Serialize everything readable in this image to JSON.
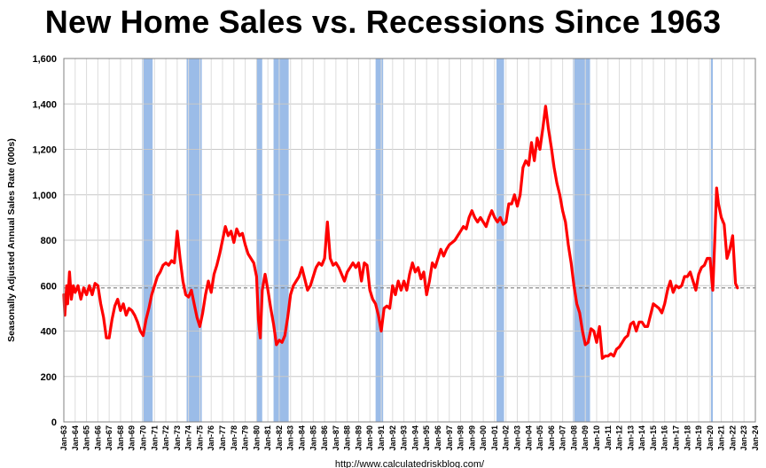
{
  "chart_data": {
    "type": "line",
    "title": "New Home Sales vs. Recessions Since 1963",
    "ylabel": "Seasonally Adjusted Annual Sales Rate (000s)",
    "xlabel": "",
    "source": "http://www.calculatedriskblog.com/",
    "ylim": [
      0,
      1600
    ],
    "xlim": [
      "1963-01",
      "2024-01"
    ],
    "y_ticks": [
      "0",
      "200",
      "400",
      "600",
      "800",
      "1,000",
      "1,200",
      "1,400",
      "1,600"
    ],
    "x_ticks": [
      "Jan-63",
      "Jan-64",
      "Jan-65",
      "Jan-66",
      "Jan-67",
      "Jan-68",
      "Jan-69",
      "Jan-70",
      "Jan-71",
      "Jan-72",
      "Jan-73",
      "Jan-74",
      "Jan-75",
      "Jan-76",
      "Jan-77",
      "Jan-78",
      "Jan-79",
      "Jan-80",
      "Jan-81",
      "Jan-82",
      "Jan-83",
      "Jan-84",
      "Jan-85",
      "Jan-86",
      "Jan-87",
      "Jan-88",
      "Jan-89",
      "Jan-90",
      "Jan-91",
      "Jan-92",
      "Jan-93",
      "Jan-94",
      "Jan-95",
      "Jan-96",
      "Jan-97",
      "Jan-98",
      "Jan-99",
      "Jan-00",
      "Jan-01",
      "Jan-02",
      "Jan-03",
      "Jan-04",
      "Jan-05",
      "Jan-06",
      "Jan-07",
      "Jan-08",
      "Jan-09",
      "Jan-10",
      "Jan-11",
      "Jan-12",
      "Jan-13",
      "Jan-14",
      "Jan-15",
      "Jan-16",
      "Jan-17",
      "Jan-18",
      "Jan-19",
      "Jan-20",
      "Jan-21",
      "Jan-22",
      "Jan-23",
      "Jan-24"
    ],
    "grid": true,
    "reference_line": {
      "y": 590,
      "style": "dashed"
    },
    "recessions": [
      {
        "start": "1969-12",
        "end": "1970-11"
      },
      {
        "start": "1973-11",
        "end": "1975-03"
      },
      {
        "start": "1980-01",
        "end": "1980-07"
      },
      {
        "start": "1981-07",
        "end": "1982-11"
      },
      {
        "start": "1990-07",
        "end": "1991-03"
      },
      {
        "start": "2001-03",
        "end": "2001-11"
      },
      {
        "start": "2007-12",
        "end": "2009-06"
      },
      {
        "start": "2020-02",
        "end": "2020-04"
      }
    ],
    "series": [
      {
        "color": "#ff0000",
        "points": [
          [
            "1963-01",
            560
          ],
          [
            "1963-02",
            470
          ],
          [
            "1963-04",
            600
          ],
          [
            "1963-05",
            520
          ],
          [
            "1963-07",
            660
          ],
          [
            "1963-09",
            540
          ],
          [
            "1963-11",
            600
          ],
          [
            "1964-01",
            570
          ],
          [
            "1964-04",
            600
          ],
          [
            "1964-07",
            540
          ],
          [
            "1964-10",
            590
          ],
          [
            "1965-01",
            560
          ],
          [
            "1965-04",
            600
          ],
          [
            "1965-07",
            560
          ],
          [
            "1965-10",
            610
          ],
          [
            "1966-01",
            600
          ],
          [
            "1966-04",
            520
          ],
          [
            "1966-07",
            460
          ],
          [
            "1966-10",
            370
          ],
          [
            "1967-01",
            370
          ],
          [
            "1967-04",
            450
          ],
          [
            "1967-07",
            510
          ],
          [
            "1967-10",
            540
          ],
          [
            "1968-01",
            490
          ],
          [
            "1968-04",
            520
          ],
          [
            "1968-07",
            470
          ],
          [
            "1968-10",
            500
          ],
          [
            "1969-01",
            490
          ],
          [
            "1969-04",
            470
          ],
          [
            "1969-07",
            440
          ],
          [
            "1969-10",
            400
          ],
          [
            "1970-01",
            380
          ],
          [
            "1970-04",
            450
          ],
          [
            "1970-07",
            500
          ],
          [
            "1970-10",
            560
          ],
          [
            "1971-01",
            600
          ],
          [
            "1971-04",
            640
          ],
          [
            "1971-07",
            660
          ],
          [
            "1971-10",
            690
          ],
          [
            "1972-01",
            700
          ],
          [
            "1972-04",
            690
          ],
          [
            "1972-07",
            710
          ],
          [
            "1972-10",
            700
          ],
          [
            "1973-01",
            840
          ],
          [
            "1973-04",
            720
          ],
          [
            "1973-07",
            620
          ],
          [
            "1973-10",
            560
          ],
          [
            "1974-01",
            550
          ],
          [
            "1974-04",
            580
          ],
          [
            "1974-07",
            520
          ],
          [
            "1974-10",
            460
          ],
          [
            "1975-01",
            420
          ],
          [
            "1975-04",
            480
          ],
          [
            "1975-07",
            560
          ],
          [
            "1975-10",
            620
          ],
          [
            "1976-01",
            570
          ],
          [
            "1976-04",
            650
          ],
          [
            "1976-07",
            690
          ],
          [
            "1976-10",
            740
          ],
          [
            "1977-01",
            800
          ],
          [
            "1977-04",
            860
          ],
          [
            "1977-07",
            820
          ],
          [
            "1977-10",
            840
          ],
          [
            "1978-01",
            790
          ],
          [
            "1978-04",
            850
          ],
          [
            "1978-07",
            820
          ],
          [
            "1978-10",
            830
          ],
          [
            "1979-01",
            780
          ],
          [
            "1979-04",
            740
          ],
          [
            "1979-07",
            720
          ],
          [
            "1979-10",
            700
          ],
          [
            "1980-01",
            640
          ],
          [
            "1980-03",
            450
          ],
          [
            "1980-05",
            370
          ],
          [
            "1980-07",
            580
          ],
          [
            "1980-10",
            650
          ],
          [
            "1981-01",
            580
          ],
          [
            "1981-04",
            500
          ],
          [
            "1981-07",
            430
          ],
          [
            "1981-10",
            340
          ],
          [
            "1982-01",
            360
          ],
          [
            "1982-04",
            350
          ],
          [
            "1982-07",
            380
          ],
          [
            "1982-10",
            460
          ],
          [
            "1983-01",
            560
          ],
          [
            "1983-04",
            600
          ],
          [
            "1983-07",
            620
          ],
          [
            "1983-10",
            640
          ],
          [
            "1984-01",
            680
          ],
          [
            "1984-04",
            630
          ],
          [
            "1984-07",
            580
          ],
          [
            "1984-10",
            600
          ],
          [
            "1985-01",
            640
          ],
          [
            "1985-04",
            680
          ],
          [
            "1985-07",
            700
          ],
          [
            "1985-10",
            690
          ],
          [
            "1986-01",
            720
          ],
          [
            "1986-04",
            880
          ],
          [
            "1986-07",
            720
          ],
          [
            "1986-10",
            690
          ],
          [
            "1987-01",
            700
          ],
          [
            "1987-04",
            680
          ],
          [
            "1987-07",
            650
          ],
          [
            "1987-10",
            620
          ],
          [
            "1988-01",
            660
          ],
          [
            "1988-04",
            680
          ],
          [
            "1988-07",
            700
          ],
          [
            "1988-10",
            680
          ],
          [
            "1989-01",
            700
          ],
          [
            "1989-04",
            620
          ],
          [
            "1989-07",
            700
          ],
          [
            "1989-10",
            690
          ],
          [
            "1990-01",
            580
          ],
          [
            "1990-04",
            540
          ],
          [
            "1990-07",
            520
          ],
          [
            "1990-10",
            470
          ],
          [
            "1991-01",
            400
          ],
          [
            "1991-04",
            500
          ],
          [
            "1991-07",
            510
          ],
          [
            "1991-10",
            500
          ],
          [
            "1992-01",
            600
          ],
          [
            "1992-04",
            560
          ],
          [
            "1992-07",
            620
          ],
          [
            "1992-10",
            580
          ],
          [
            "1993-01",
            620
          ],
          [
            "1993-04",
            580
          ],
          [
            "1993-07",
            650
          ],
          [
            "1993-10",
            700
          ],
          [
            "1994-01",
            660
          ],
          [
            "1994-04",
            680
          ],
          [
            "1994-07",
            630
          ],
          [
            "1994-10",
            660
          ],
          [
            "1995-01",
            560
          ],
          [
            "1995-04",
            620
          ],
          [
            "1995-07",
            700
          ],
          [
            "1995-10",
            680
          ],
          [
            "1996-01",
            720
          ],
          [
            "1996-04",
            760
          ],
          [
            "1996-07",
            730
          ],
          [
            "1996-10",
            760
          ],
          [
            "1997-01",
            780
          ],
          [
            "1997-04",
            790
          ],
          [
            "1997-07",
            800
          ],
          [
            "1997-10",
            820
          ],
          [
            "1998-01",
            840
          ],
          [
            "1998-04",
            860
          ],
          [
            "1998-07",
            850
          ],
          [
            "1998-10",
            900
          ],
          [
            "1999-01",
            930
          ],
          [
            "1999-04",
            900
          ],
          [
            "1999-07",
            880
          ],
          [
            "1999-10",
            900
          ],
          [
            "2000-01",
            880
          ],
          [
            "2000-04",
            860
          ],
          [
            "2000-07",
            900
          ],
          [
            "2000-10",
            930
          ],
          [
            "2001-01",
            900
          ],
          [
            "2001-04",
            880
          ],
          [
            "2001-07",
            900
          ],
          [
            "2001-10",
            870
          ],
          [
            "2002-01",
            880
          ],
          [
            "2002-04",
            960
          ],
          [
            "2002-07",
            960
          ],
          [
            "2002-10",
            1000
          ],
          [
            "2003-01",
            950
          ],
          [
            "2003-04",
            1000
          ],
          [
            "2003-07",
            1120
          ],
          [
            "2003-10",
            1150
          ],
          [
            "2004-01",
            1130
          ],
          [
            "2004-04",
            1230
          ],
          [
            "2004-07",
            1150
          ],
          [
            "2004-10",
            1250
          ],
          [
            "2005-01",
            1200
          ],
          [
            "2005-04",
            1290
          ],
          [
            "2005-07",
            1390
          ],
          [
            "2005-10",
            1290
          ],
          [
            "2006-01",
            1210
          ],
          [
            "2006-04",
            1120
          ],
          [
            "2006-07",
            1050
          ],
          [
            "2006-10",
            1000
          ],
          [
            "2007-01",
            930
          ],
          [
            "2007-04",
            880
          ],
          [
            "2007-07",
            780
          ],
          [
            "2007-10",
            700
          ],
          [
            "2008-01",
            600
          ],
          [
            "2008-04",
            520
          ],
          [
            "2008-07",
            480
          ],
          [
            "2008-10",
            400
          ],
          [
            "2009-01",
            340
          ],
          [
            "2009-04",
            350
          ],
          [
            "2009-07",
            410
          ],
          [
            "2009-10",
            400
          ],
          [
            "2010-01",
            350
          ],
          [
            "2010-04",
            420
          ],
          [
            "2010-07",
            280
          ],
          [
            "2010-10",
            290
          ],
          [
            "2011-01",
            290
          ],
          [
            "2011-04",
            300
          ],
          [
            "2011-07",
            290
          ],
          [
            "2011-10",
            320
          ],
          [
            "2012-01",
            330
          ],
          [
            "2012-04",
            350
          ],
          [
            "2012-07",
            370
          ],
          [
            "2012-10",
            380
          ],
          [
            "2013-01",
            430
          ],
          [
            "2013-04",
            440
          ],
          [
            "2013-07",
            400
          ],
          [
            "2013-10",
            440
          ],
          [
            "2014-01",
            440
          ],
          [
            "2014-04",
            420
          ],
          [
            "2014-07",
            420
          ],
          [
            "2014-10",
            470
          ],
          [
            "2015-01",
            520
          ],
          [
            "2015-04",
            510
          ],
          [
            "2015-07",
            500
          ],
          [
            "2015-10",
            480
          ],
          [
            "2016-01",
            520
          ],
          [
            "2016-04",
            580
          ],
          [
            "2016-07",
            620
          ],
          [
            "2016-10",
            570
          ],
          [
            "2017-01",
            600
          ],
          [
            "2017-04",
            590
          ],
          [
            "2017-07",
            600
          ],
          [
            "2017-10",
            640
          ],
          [
            "2018-01",
            640
          ],
          [
            "2018-04",
            660
          ],
          [
            "2018-07",
            620
          ],
          [
            "2018-10",
            580
          ],
          [
            "2019-01",
            650
          ],
          [
            "2019-04",
            680
          ],
          [
            "2019-07",
            690
          ],
          [
            "2019-10",
            720
          ],
          [
            "2020-01",
            720
          ],
          [
            "2020-03",
            620
          ],
          [
            "2020-04",
            580
          ],
          [
            "2020-06",
            800
          ],
          [
            "2020-08",
            1030
          ],
          [
            "2020-10",
            960
          ],
          [
            "2021-01",
            900
          ],
          [
            "2021-04",
            870
          ],
          [
            "2021-07",
            720
          ],
          [
            "2021-10",
            760
          ],
          [
            "2022-01",
            820
          ],
          [
            "2022-04",
            610
          ],
          [
            "2022-06",
            590
          ]
        ]
      }
    ]
  }
}
